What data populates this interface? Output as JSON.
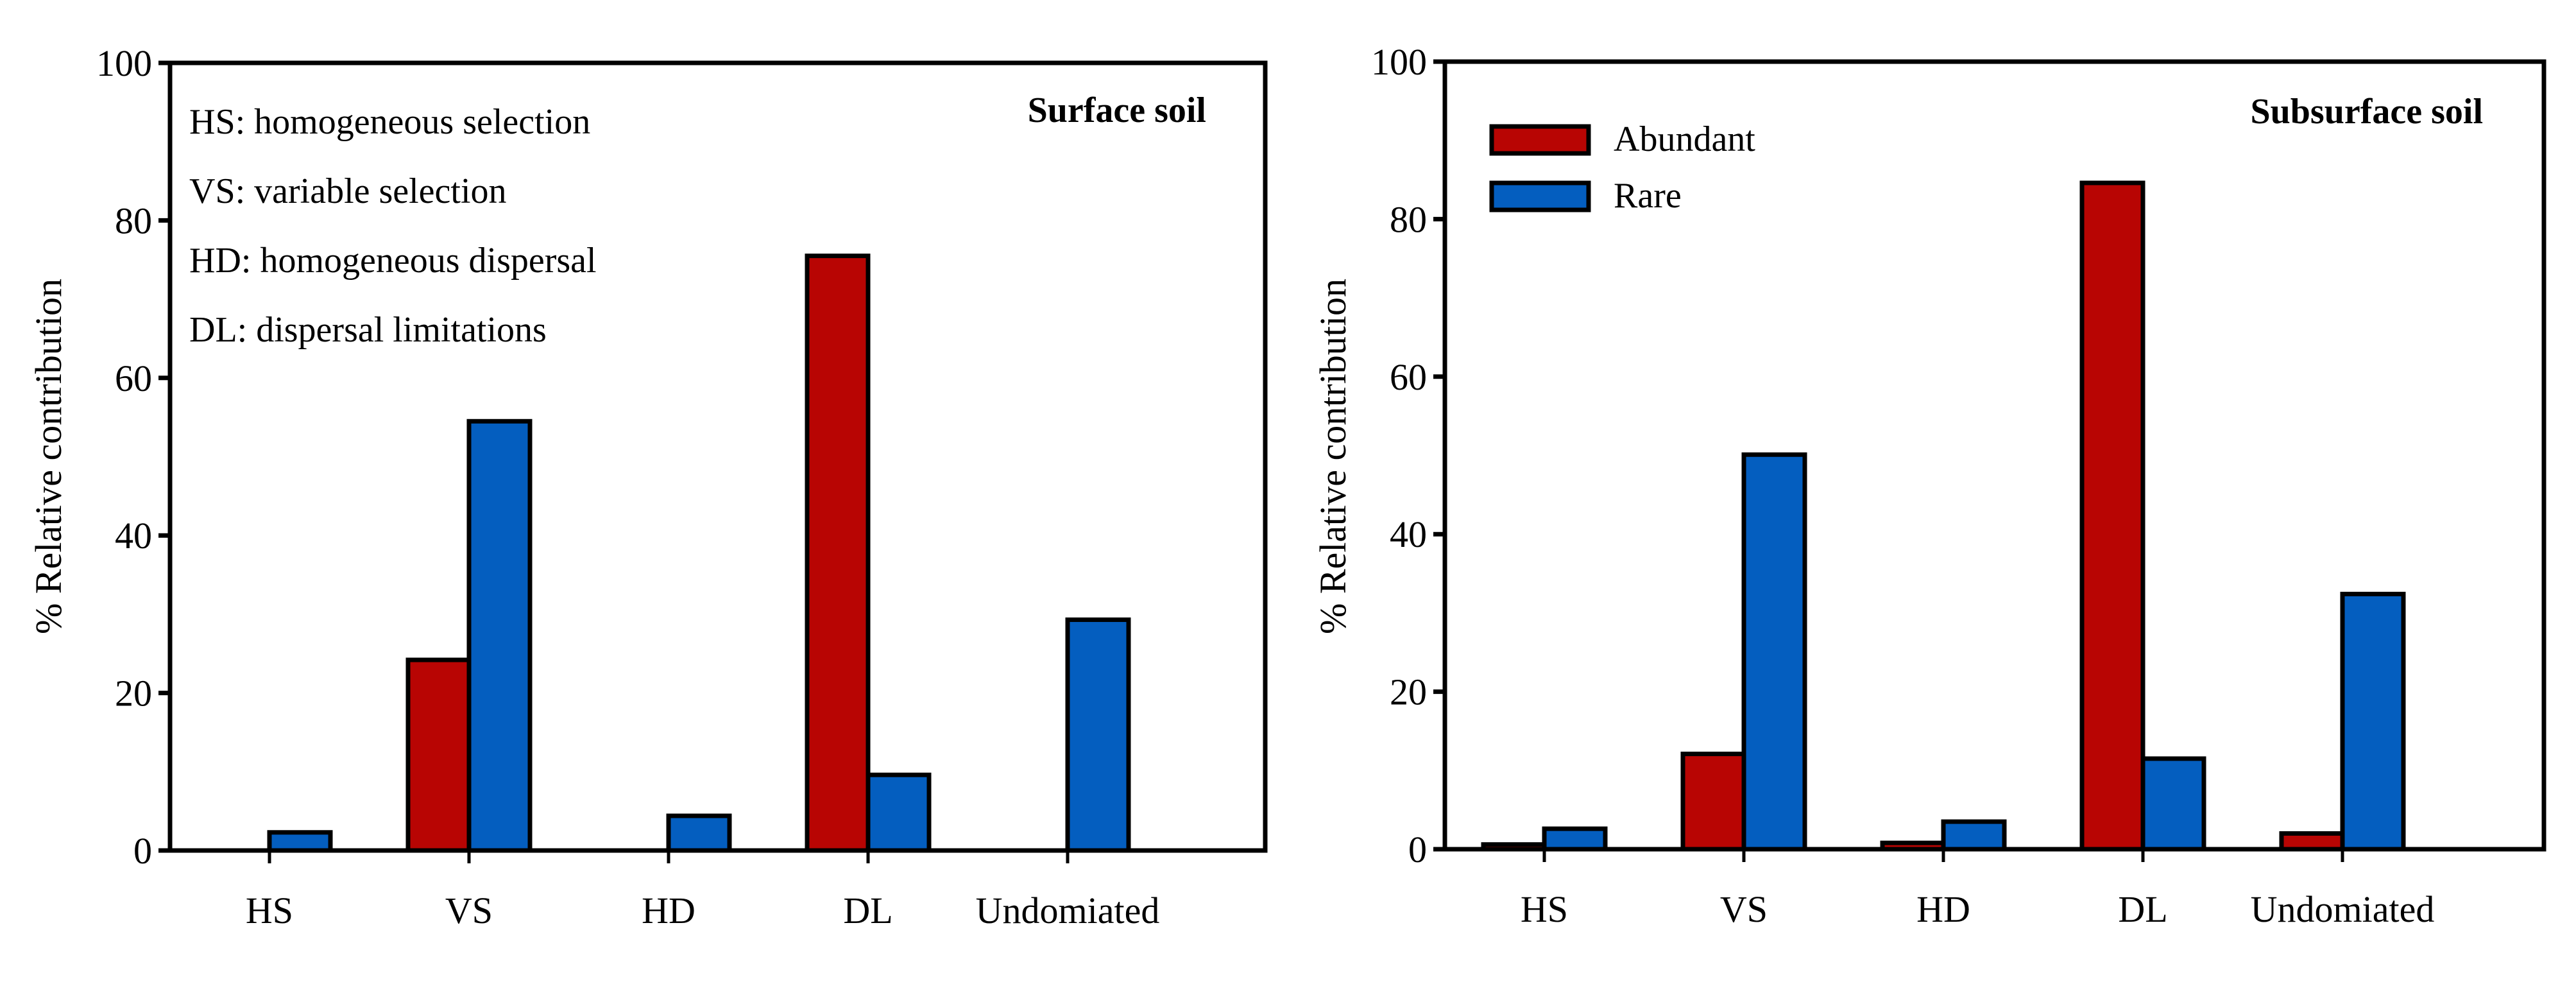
{
  "colors": {
    "abundant": "#B80503",
    "rare": "#045EBF",
    "axis": "#000000"
  },
  "chart_data": [
    {
      "type": "bar",
      "title": "Surface soil",
      "xlabel": "",
      "ylabel": "% Relative contribution",
      "ylim": [
        0,
        100
      ],
      "yticks": [
        "0",
        "20",
        "40",
        "60",
        "80",
        "100"
      ],
      "categories": [
        "HS",
        "VS",
        "HD",
        "DL",
        "Undomiated"
      ],
      "series": [
        {
          "name": "Abundant",
          "values": [
            0,
            24.2,
            0,
            75.5,
            0
          ]
        },
        {
          "name": "Rare",
          "values": [
            2.3,
            54.5,
            4.4,
            9.6,
            29.3
          ]
        }
      ],
      "annotations": [
        "HS: homogeneous selection",
        "VS: variable selection",
        "HD: homogeneous dispersal",
        "DL: dispersal limitations"
      ],
      "legend": null,
      "grid": false
    },
    {
      "type": "bar",
      "title": "Subsurface soil",
      "xlabel": "",
      "ylabel": "% Relative contribution",
      "ylim": [
        0,
        100
      ],
      "yticks": [
        "0",
        "20",
        "40",
        "60",
        "80",
        "100"
      ],
      "categories": [
        "HS",
        "VS",
        "HD",
        "DL",
        "Undomiated"
      ],
      "series": [
        {
          "name": "Abundant",
          "values": [
            0.6,
            12.1,
            0.8,
            84.6,
            2.0
          ]
        },
        {
          "name": "Rare",
          "values": [
            2.6,
            50.1,
            3.5,
            11.5,
            32.4
          ]
        }
      ],
      "annotations": [],
      "legend": {
        "position": "top-left",
        "entries": [
          "Abundant",
          "Rare"
        ]
      },
      "grid": false
    }
  ]
}
